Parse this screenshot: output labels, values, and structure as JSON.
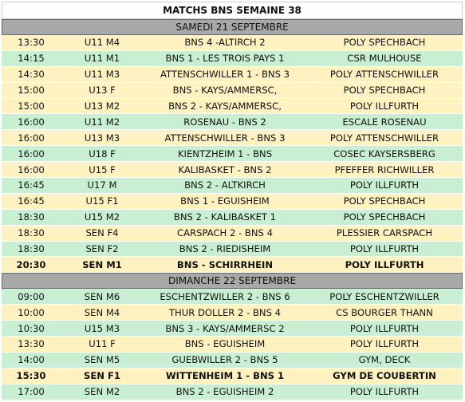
{
  "title": "MATCHS BNS SEMAINE 38",
  "colors": {
    "yellow_row": "#fff2c0",
    "green_row": "#c8efd2",
    "day_header": "#a8a8a8"
  },
  "days": [
    {
      "label": "SAMEDI 21 SEPTEMBRE",
      "matches": [
        {
          "time": "13:30",
          "category": "U11 M4",
          "match": "BNS 4 -ALTIRCH 2",
          "venue": "POLY SPECHBACH",
          "color": "yellow",
          "bold": false
        },
        {
          "time": "14:15",
          "category": "U11 M1",
          "match": "BNS 1 - LES TROIS PAYS  1",
          "venue": "CSR MULHOUSE",
          "color": "green",
          "bold": false
        },
        {
          "time": "14:30",
          "category": "U11 M3",
          "match": "ATTENSCHWILLER 1 - BNS 3",
          "venue": "POLY ATTENSCHWILLER",
          "color": "yellow",
          "bold": false
        },
        {
          "time": "15:00",
          "category": "U13 F",
          "match": "BNS - KAYS/AMMERSC,",
          "venue": "POLY SPECHBACH",
          "color": "yellow",
          "bold": false
        },
        {
          "time": "15:00",
          "category": "U13 M2",
          "match": "BNS 2 - KAYS/AMMERSC,",
          "venue": "POLY ILLFURTH",
          "color": "yellow",
          "bold": false
        },
        {
          "time": "16:00",
          "category": "U11 M2",
          "match": "ROSENAU - BNS 2",
          "venue": "ESCALE ROSENAU",
          "color": "green",
          "bold": false
        },
        {
          "time": "16:00",
          "category": "U13 M3",
          "match": "ATTENSCHWILLER - BNS 3",
          "venue": "POLY ATTENSCHWILLER",
          "color": "yellow",
          "bold": false
        },
        {
          "time": "16:00",
          "category": "U18 F",
          "match": "KIENTZHEIM  1 - BNS",
          "venue": "COSEC KAYSERSBERG",
          "color": "green",
          "bold": false
        },
        {
          "time": "16:00",
          "category": "U15 F",
          "match": "KALIBASKET - BNS 2",
          "venue": "PFEFFER RICHWILLER",
          "color": "yellow",
          "bold": false
        },
        {
          "time": "16:45",
          "category": "U17 M",
          "match": "BNS 2 - ALTKIRCH",
          "venue": "POLY ILLFURTH",
          "color": "green",
          "bold": false
        },
        {
          "time": "16:45",
          "category": "U15 F1",
          "match": "BNS 1 - EGUISHEIM",
          "venue": "POLY SPECHBACH",
          "color": "yellow",
          "bold": false
        },
        {
          "time": "18:30",
          "category": "U15 M2",
          "match": "BNS 2 - KALIBASKET 1",
          "venue": "POLY SPECHBACH",
          "color": "green",
          "bold": false
        },
        {
          "time": "18:30",
          "category": "SEN F4",
          "match": "CARSPACH  2 - BNS 4",
          "venue": "PLESSIER CARSPACH",
          "color": "yellow",
          "bold": false
        },
        {
          "time": "18:30",
          "category": "SEN F2",
          "match": "BNS 2 - RIEDISHEIM",
          "venue": "POLY ILLFURTH",
          "color": "green",
          "bold": false
        },
        {
          "time": "20:30",
          "category": "SEN M1",
          "match": "BNS - SCHIRRHEIN",
          "venue": "POLY ILLFURTH",
          "color": "yellow",
          "bold": true
        }
      ]
    },
    {
      "label": "DIMANCHE 22 SEPTEMBRE",
      "matches": [
        {
          "time": "09:00",
          "category": "SEN M6",
          "match": "ESCHENTZWILLER 2 - BNS 6",
          "venue": "POLY ESCHENTZWILLER",
          "color": "green",
          "bold": false
        },
        {
          "time": "10:00",
          "category": "SEN M4",
          "match": "THUR DOLLER  2 - BNS 4",
          "venue": "CS BOURGER THANN",
          "color": "yellow",
          "bold": false
        },
        {
          "time": "10:30",
          "category": "U15 M3",
          "match": "BNS 3 -  KAYS/AMMERSC 2",
          "venue": "POLY ILLFURTH",
          "color": "green",
          "bold": false
        },
        {
          "time": "13:30",
          "category": "U11 F",
          "match": "BNS - EGUISHEIM",
          "venue": "POLY ILLFURTH",
          "color": "yellow",
          "bold": false
        },
        {
          "time": "14:00",
          "category": "SEN M5",
          "match": "GUEBWILLER  2 - BNS 5",
          "venue": "GYM, DECK",
          "color": "green",
          "bold": false
        },
        {
          "time": "15:30",
          "category": "SEN F1",
          "match": "WITTENHEIM 1 - BNS 1",
          "venue": "GYM DE COUBERTIN",
          "color": "yellow",
          "bold": true
        },
        {
          "time": "17:00",
          "category": "SEN M2",
          "match": "BNS 2 - EGUISHEIM 2",
          "venue": "POLY ILLFURTH",
          "color": "green",
          "bold": false
        }
      ]
    }
  ]
}
